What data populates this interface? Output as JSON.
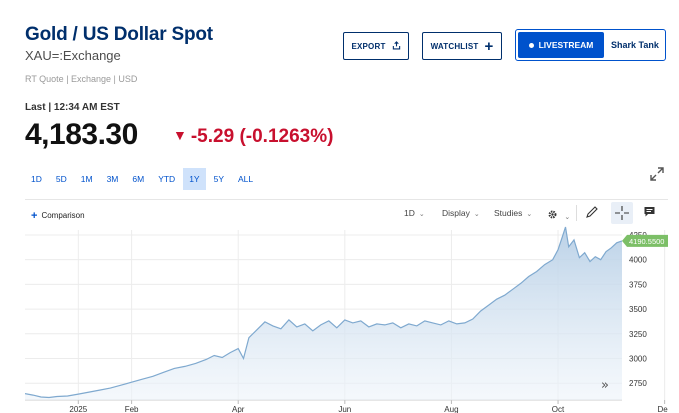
{
  "header": {
    "title": "Gold / US Dollar Spot",
    "subtitle": "XAU=:Exchange",
    "meta": "RT Quote | Exchange | USD",
    "last_label": "Last | 12:34 AM EST",
    "price": "4,183.30",
    "change": "-5.29 (-0.1263%)",
    "change_color": "#c8102e"
  },
  "actions": {
    "export_label": "EXPORT",
    "watchlist_label": "WATCHLIST",
    "livestream_label": "LIVESTREAM",
    "show_label": "Shark Tank"
  },
  "ranges": [
    {
      "label": "1D",
      "active": false
    },
    {
      "label": "5D",
      "active": false
    },
    {
      "label": "1M",
      "active": false
    },
    {
      "label": "3M",
      "active": false
    },
    {
      "label": "6M",
      "active": false
    },
    {
      "label": "YTD",
      "active": false
    },
    {
      "label": "1Y",
      "active": true
    },
    {
      "label": "5Y",
      "active": false
    },
    {
      "label": "ALL",
      "active": false
    }
  ],
  "toolbar": {
    "comparison_label": "Comparison",
    "interval_label": "1D",
    "display_label": "Display",
    "studies_label": "Studies"
  },
  "chart_data": {
    "type": "area",
    "x_tick_labels": [
      "2025",
      "Feb",
      "Apr",
      "Jun",
      "Aug",
      "Oct",
      "Dec"
    ],
    "y_tick_labels": [
      "2750",
      "3000",
      "3250",
      "3500",
      "3750",
      "4000",
      "4250"
    ],
    "ylim": [
      2580,
      4300
    ],
    "y_ticks": [
      2750,
      3000,
      3250,
      3500,
      3750,
      4000,
      4250
    ],
    "x_months_range": [
      0,
      11.2
    ],
    "x_tick_months": [
      1.0,
      2.0,
      4.0,
      6.0,
      8.0,
      10.0,
      12.0
    ],
    "last_value_label": "4190.5500",
    "last_value": 4190.55,
    "line_color": "#7fa9cf",
    "fill_color_top": "#b7cfe6",
    "label_color": "#7cbf67",
    "grid": true,
    "series": [
      {
        "values": [
          [
            0.0,
            2645
          ],
          [
            0.15,
            2630
          ],
          [
            0.3,
            2610
          ],
          [
            0.45,
            2605
          ],
          [
            0.6,
            2615
          ],
          [
            0.8,
            2620
          ],
          [
            1.0,
            2640
          ],
          [
            1.2,
            2660
          ],
          [
            1.4,
            2680
          ],
          [
            1.6,
            2700
          ],
          [
            1.8,
            2730
          ],
          [
            2.0,
            2760
          ],
          [
            2.2,
            2790
          ],
          [
            2.4,
            2820
          ],
          [
            2.6,
            2860
          ],
          [
            2.8,
            2900
          ],
          [
            3.0,
            2920
          ],
          [
            3.2,
            2950
          ],
          [
            3.4,
            2990
          ],
          [
            3.55,
            3030
          ],
          [
            3.7,
            3010
          ],
          [
            3.85,
            3060
          ],
          [
            4.0,
            3100
          ],
          [
            4.1,
            3000
          ],
          [
            4.2,
            3210
          ],
          [
            4.35,
            3290
          ],
          [
            4.5,
            3370
          ],
          [
            4.65,
            3330
          ],
          [
            4.8,
            3300
          ],
          [
            4.95,
            3390
          ],
          [
            5.1,
            3320
          ],
          [
            5.25,
            3350
          ],
          [
            5.4,
            3280
          ],
          [
            5.55,
            3340
          ],
          [
            5.7,
            3380
          ],
          [
            5.85,
            3310
          ],
          [
            6.0,
            3390
          ],
          [
            6.15,
            3360
          ],
          [
            6.3,
            3380
          ],
          [
            6.45,
            3320
          ],
          [
            6.6,
            3350
          ],
          [
            6.75,
            3340
          ],
          [
            6.9,
            3360
          ],
          [
            7.05,
            3310
          ],
          [
            7.2,
            3350
          ],
          [
            7.35,
            3330
          ],
          [
            7.5,
            3380
          ],
          [
            7.65,
            3360
          ],
          [
            7.8,
            3340
          ],
          [
            7.95,
            3380
          ],
          [
            8.1,
            3350
          ],
          [
            8.25,
            3360
          ],
          [
            8.4,
            3400
          ],
          [
            8.55,
            3480
          ],
          [
            8.7,
            3540
          ],
          [
            8.85,
            3600
          ],
          [
            9.0,
            3640
          ],
          [
            9.15,
            3700
          ],
          [
            9.3,
            3760
          ],
          [
            9.45,
            3830
          ],
          [
            9.6,
            3880
          ],
          [
            9.75,
            3950
          ],
          [
            9.9,
            4000
          ],
          [
            10.0,
            4100
          ],
          [
            10.08,
            4230
          ],
          [
            10.14,
            4330
          ],
          [
            10.2,
            4130
          ],
          [
            10.3,
            4200
          ],
          [
            10.4,
            4020
          ],
          [
            10.5,
            4070
          ],
          [
            10.6,
            3980
          ],
          [
            10.7,
            4030
          ],
          [
            10.8,
            4000
          ],
          [
            10.9,
            4080
          ],
          [
            11.0,
            4120
          ],
          [
            11.1,
            4170
          ],
          [
            11.2,
            4190
          ]
        ]
      }
    ]
  }
}
